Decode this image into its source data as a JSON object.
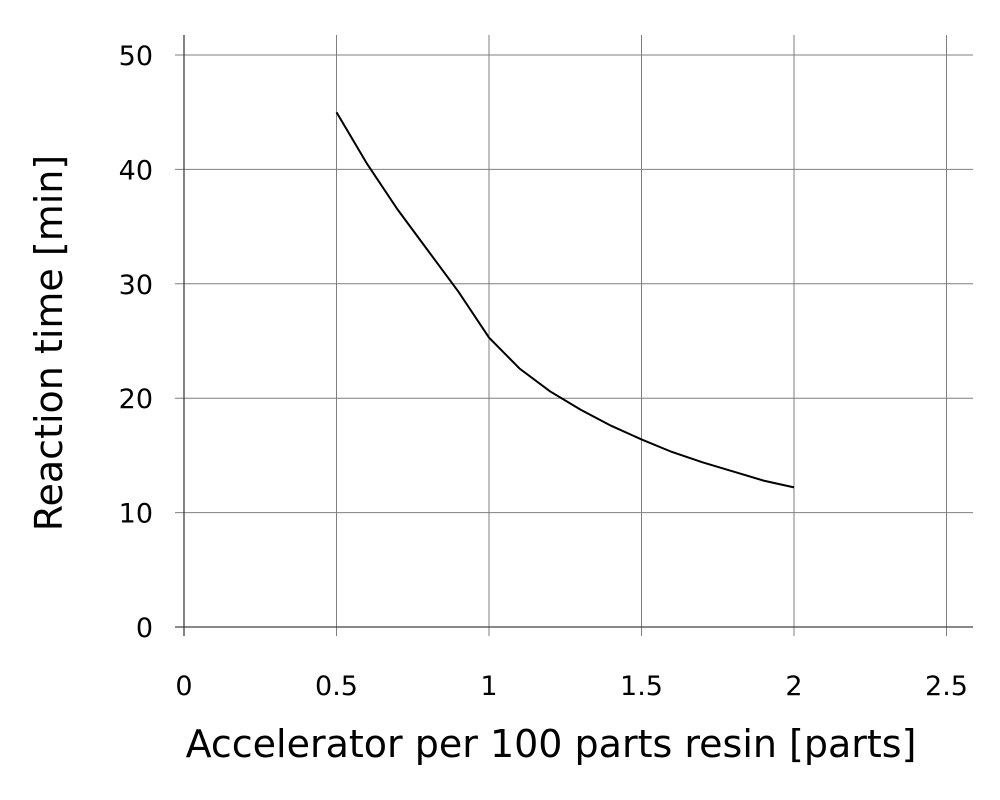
{
  "chart_data": {
    "type": "line",
    "title": "",
    "xlabel": "Accelerator per 100 parts resin [parts]",
    "ylabel": "Reaction time [min]",
    "xlim": [
      0,
      2.6
    ],
    "ylim": [
      0,
      50
    ],
    "xticks": [
      0,
      0.5,
      1,
      1.5,
      2,
      2.5
    ],
    "xtick_labels": [
      "0",
      "0.5",
      "1",
      "1.5",
      "2",
      "2.5"
    ],
    "yticks": [
      0,
      10,
      20,
      30,
      40,
      50
    ],
    "ytick_labels": [
      "0",
      "10",
      "20",
      "30",
      "40",
      "50"
    ],
    "grid": true,
    "legend": "none",
    "series": [
      {
        "x": [
          0.5,
          0.6,
          0.7,
          0.8,
          0.9,
          1.0,
          1.1,
          1.2,
          1.3,
          1.4,
          1.5,
          1.6,
          1.7,
          1.8,
          1.9,
          2.0
        ],
        "y": [
          45,
          40.5,
          36.5,
          32.9,
          29.3,
          25.3,
          22.6,
          20.6,
          19.0,
          17.6,
          16.4,
          15.3,
          14.4,
          13.6,
          12.8,
          12.2
        ],
        "color": "#000000"
      }
    ]
  }
}
